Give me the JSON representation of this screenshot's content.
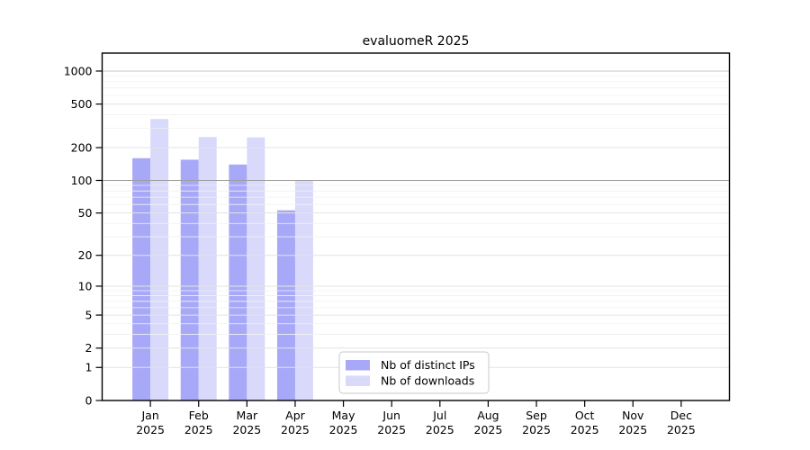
{
  "page": {
    "background": "#ffffff"
  },
  "chart_data": {
    "type": "bar",
    "title": "evaluomeR 2025",
    "xlabel": "",
    "ylabel": "",
    "yscale": "log1p",
    "ylim": [
      0,
      1458
    ],
    "yticks": [
      0,
      1,
      2,
      5,
      10,
      20,
      50,
      100,
      200,
      500,
      1000
    ],
    "minor_gridlines": [
      3,
      4,
      6,
      7,
      8,
      9,
      30,
      40,
      60,
      70,
      80,
      90,
      300,
      400,
      600,
      700,
      800,
      900
    ],
    "grid": {
      "line_color": "#e3e3e3",
      "minor_color": "#f1f1f1",
      "emphasis": {
        "100": "#9e9e9e",
        "1000": "#c6c6c6"
      }
    },
    "frame_color": "#000000",
    "categories": [
      {
        "month": "Jan",
        "year": "2025"
      },
      {
        "month": "Feb",
        "year": "2025"
      },
      {
        "month": "Mar",
        "year": "2025"
      },
      {
        "month": "Apr",
        "year": "2025"
      },
      {
        "month": "May",
        "year": "2025"
      },
      {
        "month": "Jun",
        "year": "2025"
      },
      {
        "month": "Jul",
        "year": "2025"
      },
      {
        "month": "Aug",
        "year": "2025"
      },
      {
        "month": "Sep",
        "year": "2025"
      },
      {
        "month": "Oct",
        "year": "2025"
      },
      {
        "month": "Nov",
        "year": "2025"
      },
      {
        "month": "Dec",
        "year": "2025"
      }
    ],
    "series": [
      {
        "name": "Nb of distinct IPs",
        "color": "#a8a8f8",
        "values": [
          160,
          155,
          140,
          53,
          null,
          null,
          null,
          null,
          null,
          null,
          null,
          null
        ]
      },
      {
        "name": "Nb of downloads",
        "color": "#d9d9fb",
        "values": [
          365,
          250,
          248,
          100,
          null,
          null,
          null,
          null,
          null,
          null,
          null,
          null
        ]
      }
    ],
    "legend": {
      "position": "bottom-center",
      "background": "#ffffff",
      "border_color": "#c9c9c9",
      "entries": [
        "Nb of distinct IPs",
        "Nb of downloads"
      ]
    }
  }
}
